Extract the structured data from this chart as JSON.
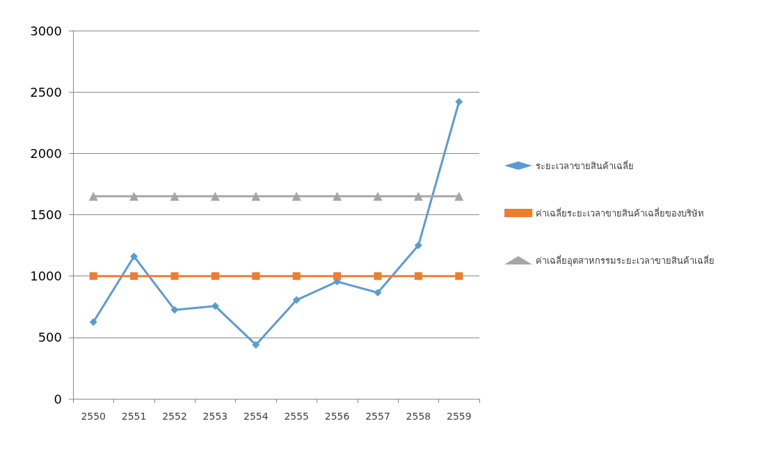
{
  "chart_data": {
    "type": "line",
    "categories": [
      "2550",
      "2551",
      "2552",
      "2553",
      "2554",
      "2555",
      "2556",
      "2557",
      "2558",
      "2559"
    ],
    "series": [
      {
        "name": "ระยะเวลาขายสินค้าเฉลี่ย",
        "color": "#5b9bd5",
        "marker": "diamond",
        "values": [
          625,
          1160,
          725,
          755,
          440,
          805,
          955,
          865,
          1250,
          2420
        ]
      },
      {
        "name": "ค่าเฉลี่ยระยะเวลาขายสินค้าเฉลี่ยของบริษัท",
        "color": "#ed7d31",
        "marker": "square",
        "values": [
          1000,
          1000,
          1000,
          1000,
          1000,
          1000,
          1000,
          1000,
          1000,
          1000
        ]
      },
      {
        "name": "ค่าเฉลี่ยอุตสาหกรรมระยะเวลาขายสินค้าเฉลี่ย",
        "color": "#a5a5a5",
        "marker": "triangle",
        "values": [
          1650,
          1650,
          1650,
          1650,
          1650,
          1650,
          1650,
          1650,
          1650,
          1650
        ]
      }
    ],
    "ylim": [
      0,
      3000
    ],
    "yticks": [
      0,
      500,
      1000,
      1500,
      2000,
      2500,
      3000
    ],
    "grid": "y",
    "legend": "right",
    "line_style": "solid"
  }
}
